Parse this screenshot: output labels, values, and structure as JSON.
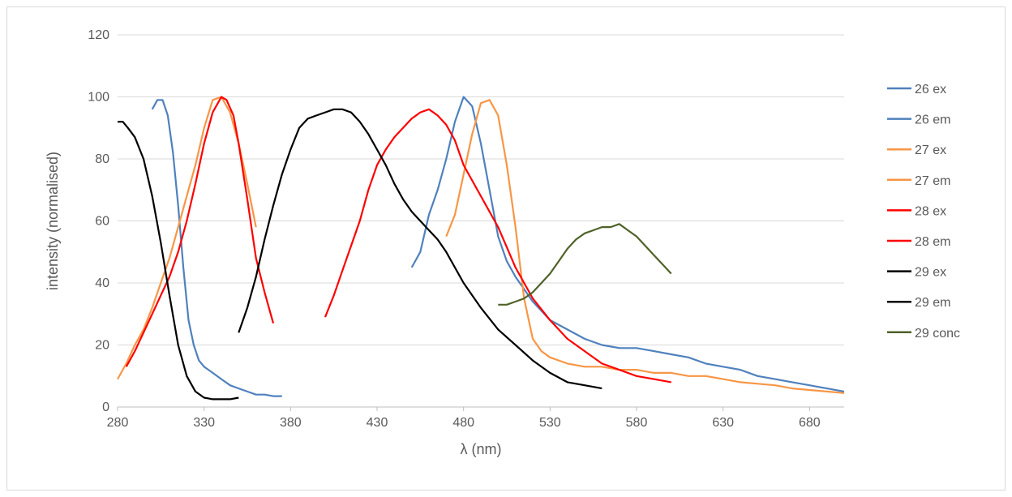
{
  "chart_data": {
    "type": "line",
    "title": "",
    "xlabel": "λ (nm)",
    "ylabel": "intensity (normalised)",
    "xlim": [
      280,
      700
    ],
    "ylim": [
      0,
      120
    ],
    "x_ticks": [
      280,
      330,
      380,
      430,
      480,
      530,
      580,
      630,
      680
    ],
    "y_ticks": [
      0,
      20,
      40,
      60,
      80,
      100,
      120
    ],
    "grid": "horizontal",
    "legend": "right",
    "series": [
      {
        "name": "26 ex",
        "color": "#4f81bd",
        "x": [
          300,
          303,
          306,
          309,
          312,
          315,
          318,
          321,
          324,
          327,
          330,
          335,
          340,
          345,
          350,
          355,
          360,
          365,
          370,
          375
        ],
        "y": [
          96,
          99,
          99,
          94,
          82,
          65,
          45,
          28,
          20,
          15,
          13,
          11,
          9,
          7,
          6,
          5,
          4,
          4,
          3.5,
          3.5
        ]
      },
      {
        "name": "26 em",
        "color": "#4f81bd",
        "x": [
          450,
          455,
          460,
          465,
          470,
          475,
          480,
          485,
          490,
          495,
          500,
          505,
          510,
          515,
          520,
          525,
          530,
          540,
          550,
          560,
          570,
          580,
          590,
          600,
          610,
          620,
          630,
          640,
          650,
          660,
          670,
          680,
          690,
          700
        ],
        "y": [
          45,
          50,
          62,
          70,
          80,
          92,
          100,
          97,
          85,
          70,
          55,
          47,
          42,
          38,
          34,
          31,
          28,
          25,
          22,
          20,
          19,
          19,
          18,
          17,
          16,
          14,
          13,
          12,
          10,
          9,
          8,
          7,
          6,
          5
        ]
      },
      {
        "name": "27 ex",
        "color": "#f79646",
        "x": [
          280,
          285,
          290,
          295,
          300,
          305,
          310,
          315,
          320,
          325,
          330,
          335,
          340,
          345,
          350,
          355,
          360
        ],
        "y": [
          9,
          14,
          20,
          25,
          32,
          40,
          48,
          58,
          68,
          78,
          90,
          99,
          100,
          95,
          85,
          72,
          58
        ]
      },
      {
        "name": "27 em",
        "color": "#f79646",
        "x": [
          470,
          475,
          480,
          485,
          490,
          495,
          500,
          505,
          510,
          515,
          520,
          525,
          530,
          540,
          550,
          560,
          570,
          580,
          590,
          600,
          610,
          620,
          630,
          640,
          650,
          660,
          670,
          680,
          690,
          700
        ],
        "y": [
          55,
          62,
          75,
          88,
          98,
          99,
          94,
          78,
          58,
          35,
          22,
          18,
          16,
          14,
          13,
          13,
          12,
          12,
          11,
          11,
          10,
          10,
          9,
          8,
          7.5,
          7,
          6,
          5.5,
          5,
          4.5
        ]
      },
      {
        "name": "28 ex",
        "color": "#ff0000",
        "x": [
          285,
          290,
          295,
          300,
          305,
          310,
          315,
          320,
          325,
          330,
          335,
          340,
          343,
          347,
          350,
          355,
          360,
          365,
          370
        ],
        "y": [
          13,
          18,
          24,
          30,
          36,
          42,
          50,
          60,
          72,
          85,
          95,
          100,
          99,
          94,
          85,
          67,
          48,
          37,
          27
        ]
      },
      {
        "name": "28 em",
        "color": "#ff0000",
        "x": [
          400,
          405,
          410,
          415,
          420,
          425,
          430,
          435,
          440,
          445,
          450,
          455,
          460,
          465,
          470,
          475,
          480,
          490,
          500,
          510,
          520,
          530,
          540,
          550,
          560,
          570,
          580,
          590,
          600
        ],
        "y": [
          29,
          36,
          44,
          52,
          60,
          70,
          78,
          83,
          87,
          90,
          93,
          95,
          96,
          94,
          91,
          86,
          78,
          68,
          58,
          45,
          35,
          28,
          22,
          18,
          14,
          12,
          10,
          9,
          8
        ]
      },
      {
        "name": "29 ex",
        "color": "#000000",
        "x": [
          280,
          283,
          286,
          290,
          295,
          300,
          305,
          310,
          315,
          320,
          325,
          330,
          335,
          340,
          345,
          350
        ],
        "y": [
          92,
          92,
          90,
          87,
          80,
          68,
          53,
          36,
          20,
          10,
          5,
          3,
          2.5,
          2.5,
          2.5,
          3
        ]
      },
      {
        "name": "29 em",
        "color": "#000000",
        "x": [
          350,
          355,
          360,
          365,
          370,
          375,
          380,
          385,
          390,
          395,
          400,
          405,
          410,
          415,
          420,
          425,
          430,
          435,
          440,
          445,
          450,
          455,
          460,
          465,
          470,
          480,
          490,
          500,
          510,
          520,
          530,
          540,
          550,
          560
        ],
        "y": [
          24,
          32,
          42,
          54,
          65,
          75,
          83,
          90,
          93,
          94,
          95,
          96,
          96,
          95,
          92,
          88,
          83,
          78,
          72,
          67,
          63,
          60,
          57,
          54,
          50,
          40,
          32,
          25,
          20,
          15,
          11,
          8,
          7,
          6
        ]
      },
      {
        "name": "29 conc",
        "color": "#4f6228",
        "x": [
          500,
          505,
          510,
          515,
          520,
          525,
          530,
          535,
          540,
          545,
          550,
          555,
          560,
          565,
          570,
          575,
          580,
          585,
          590,
          595,
          600
        ],
        "y": [
          33,
          33,
          34,
          35,
          37,
          40,
          43,
          47,
          51,
          54,
          56,
          57,
          58,
          58,
          59,
          57,
          55,
          52,
          49,
          46,
          43
        ]
      }
    ]
  }
}
